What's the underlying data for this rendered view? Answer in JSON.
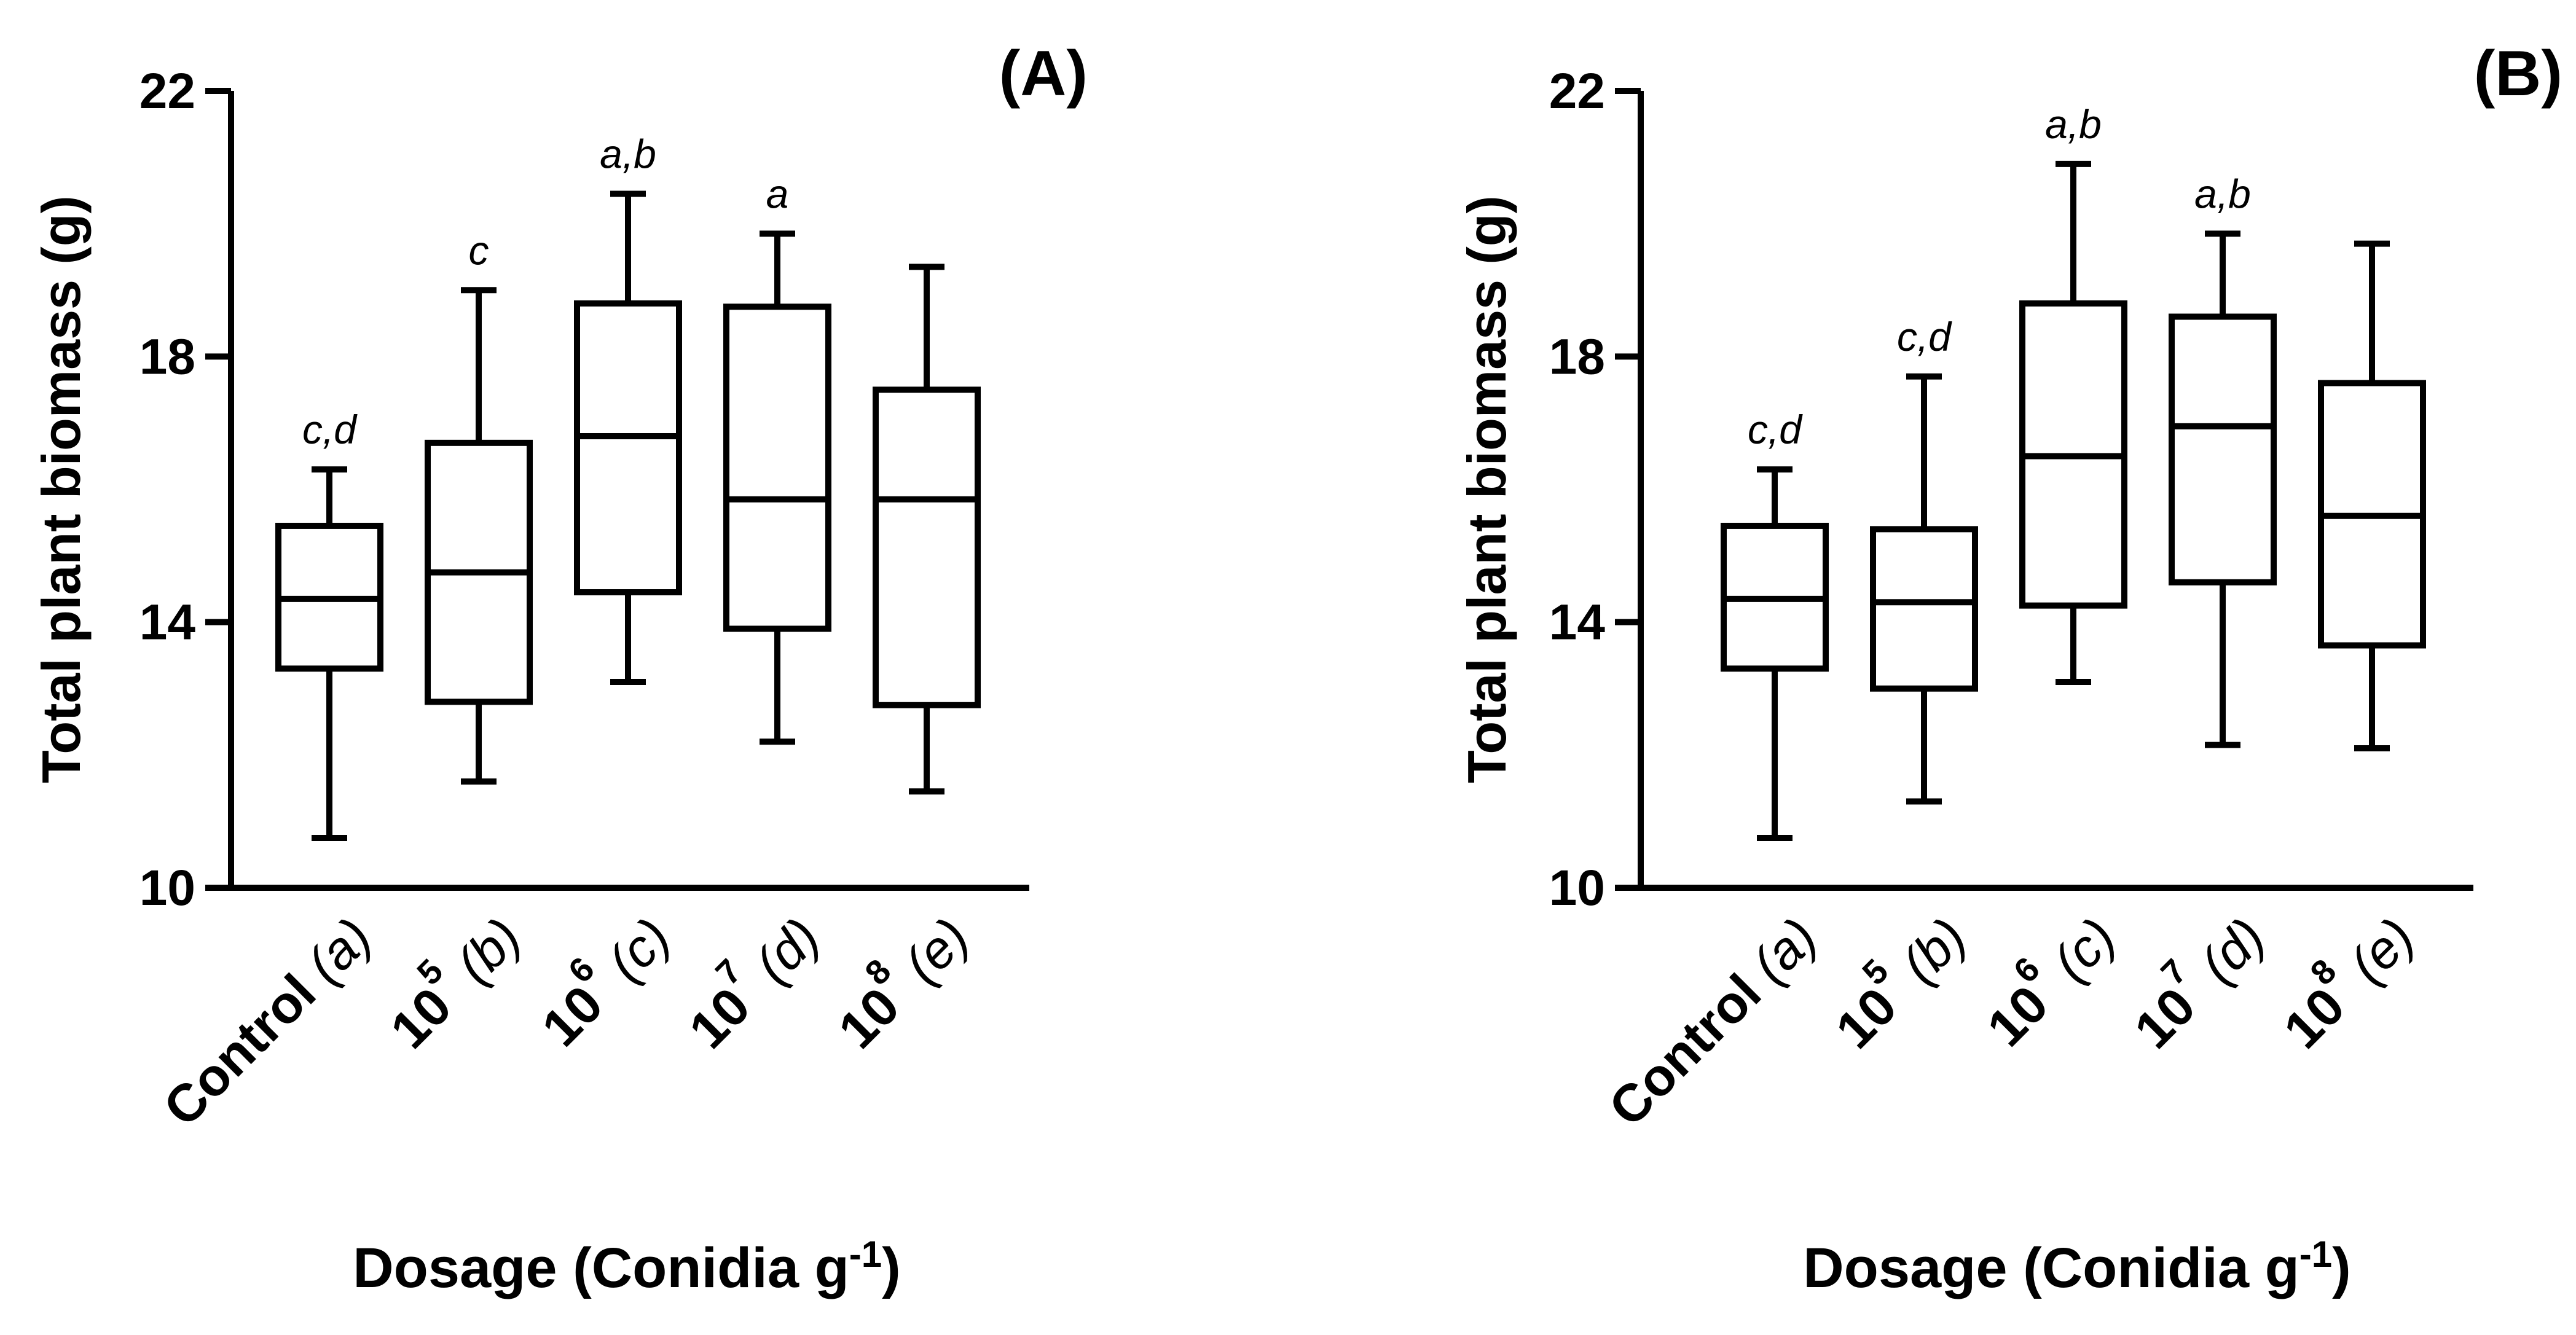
{
  "chart_data": [
    {
      "type": "boxplot",
      "panel_label": "(A)",
      "ylabel": "Total plant biomass (g)",
      "xlabel": {
        "main": "Dosage (Conidia g",
        "sup": "-1",
        "close": ")"
      },
      "ylim": [
        10,
        22
      ],
      "yticks": [
        10,
        14,
        18,
        22
      ],
      "grid": false,
      "categories": [
        {
          "base": "Control",
          "exp": "",
          "group": "(a)"
        },
        {
          "base": "10",
          "exp": "5",
          "group": "(b)"
        },
        {
          "base": "10",
          "exp": "6",
          "group": "(c)"
        },
        {
          "base": "10",
          "exp": "7",
          "group": "(d)"
        },
        {
          "base": "10",
          "exp": "8",
          "group": "(e)"
        }
      ],
      "boxes": [
        {
          "min": 10.75,
          "q1": 13.3,
          "median": 14.35,
          "q3": 15.45,
          "max": 16.3,
          "sig": "c,d"
        },
        {
          "min": 11.6,
          "q1": 12.8,
          "median": 14.75,
          "q3": 16.7,
          "max": 19.0,
          "sig": "c"
        },
        {
          "min": 13.1,
          "q1": 14.45,
          "median": 16.8,
          "q3": 18.8,
          "max": 20.45,
          "sig": "a,b"
        },
        {
          "min": 12.2,
          "q1": 13.9,
          "median": 15.85,
          "q3": 18.75,
          "max": 19.85,
          "sig": "a"
        },
        {
          "min": 11.45,
          "q1": 12.75,
          "median": 15.85,
          "q3": 17.5,
          "max": 19.35,
          "sig": ""
        }
      ]
    },
    {
      "type": "boxplot",
      "panel_label": "(B)",
      "ylabel": "Total plant biomass (g)",
      "xlabel": {
        "main": "Dosage (Conidia g",
        "sup": "-1",
        "close": ")"
      },
      "ylim": [
        10,
        22
      ],
      "yticks": [
        10,
        14,
        18,
        22
      ],
      "grid": false,
      "categories": [
        {
          "base": "Control",
          "exp": "",
          "group": "(a)"
        },
        {
          "base": "10",
          "exp": "5",
          "group": "(b)"
        },
        {
          "base": "10",
          "exp": "6",
          "group": "(c)"
        },
        {
          "base": "10",
          "exp": "7",
          "group": "(d)"
        },
        {
          "base": "10",
          "exp": "8",
          "group": "(e)"
        }
      ],
      "boxes": [
        {
          "min": 10.75,
          "q1": 13.3,
          "median": 14.35,
          "q3": 15.45,
          "max": 16.3,
          "sig": "c,d"
        },
        {
          "min": 11.3,
          "q1": 13.0,
          "median": 14.3,
          "q3": 15.4,
          "max": 17.7,
          "sig": "c,d"
        },
        {
          "min": 13.1,
          "q1": 14.25,
          "median": 16.5,
          "q3": 18.8,
          "max": 20.9,
          "sig": "a,b"
        },
        {
          "min": 12.15,
          "q1": 14.6,
          "median": 16.95,
          "q3": 18.6,
          "max": 19.85,
          "sig": "a,b"
        },
        {
          "min": 12.1,
          "q1": 13.65,
          "median": 15.6,
          "q3": 17.6,
          "max": 19.7,
          "sig": ""
        }
      ]
    }
  ]
}
